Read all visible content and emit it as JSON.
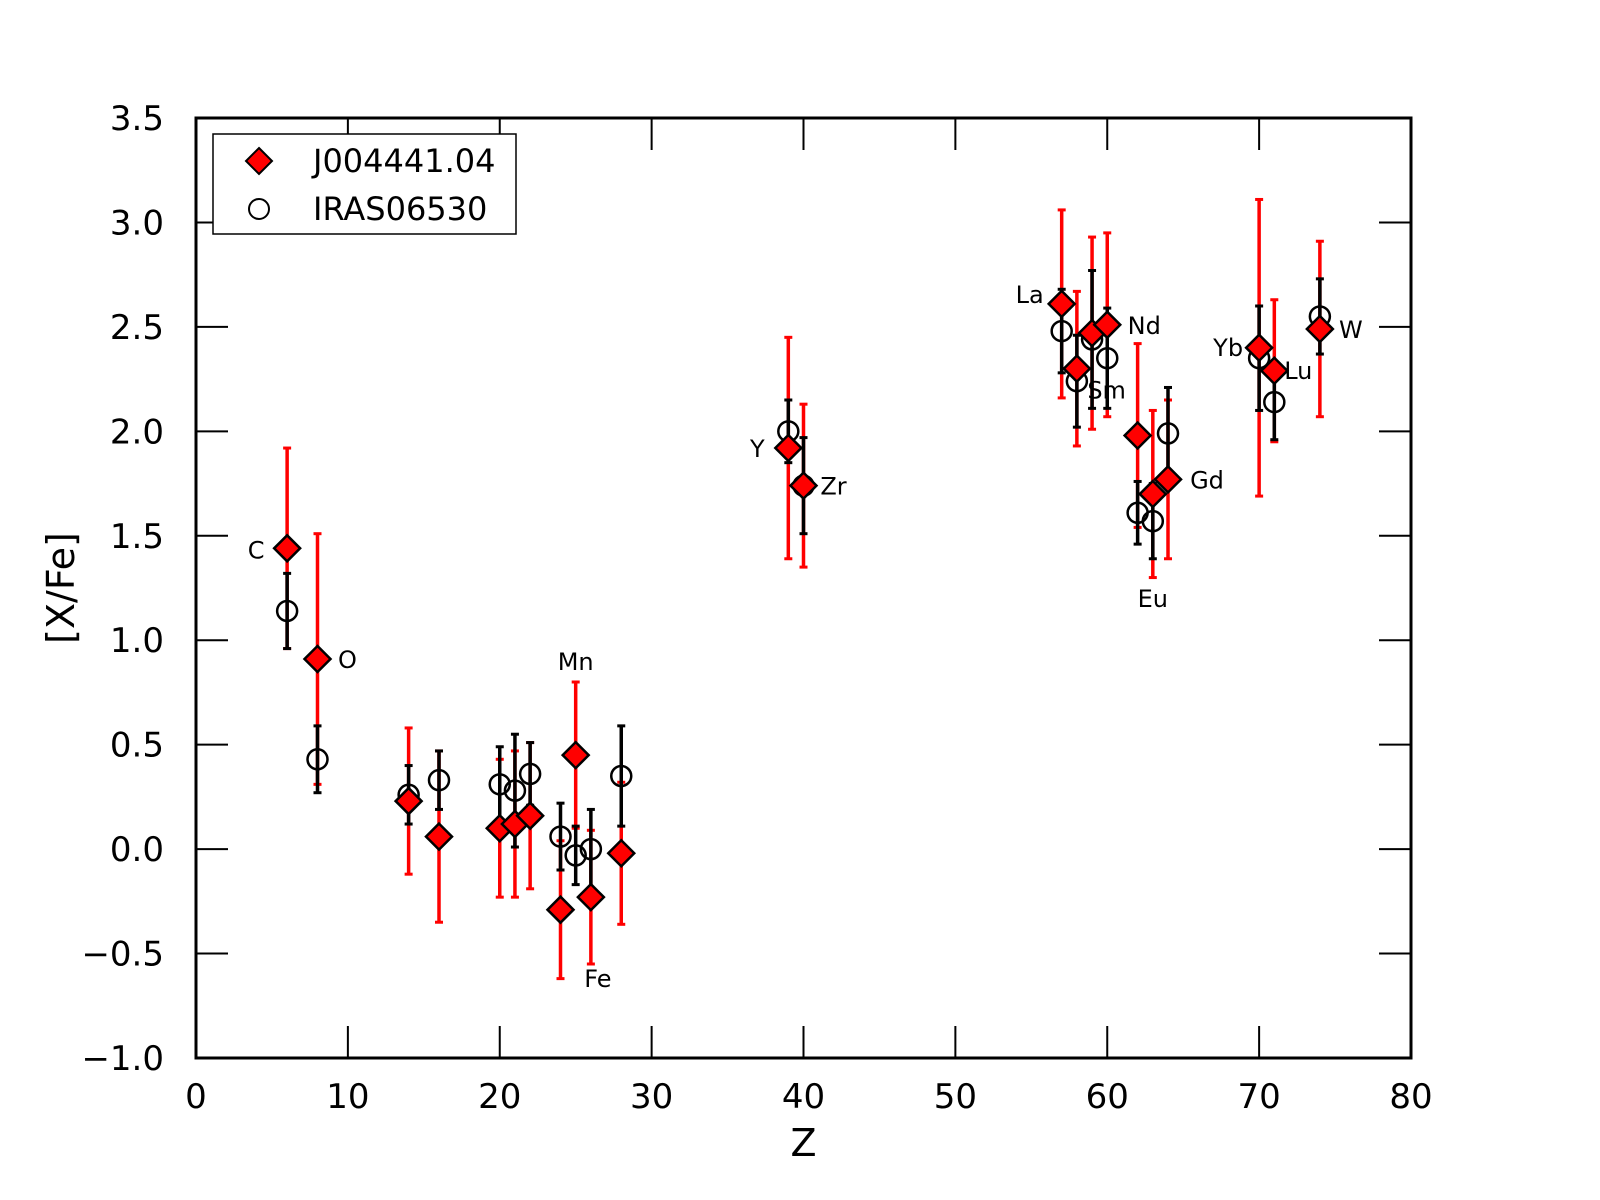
{
  "chart_data": {
    "type": "scatter",
    "xlabel": "Z",
    "ylabel": "[X/Fe]",
    "xlim": [
      0,
      80
    ],
    "ylim": [
      -1.0,
      3.5
    ],
    "xticks": [
      0,
      10,
      20,
      30,
      40,
      50,
      60,
      70,
      80
    ],
    "yticks": [
      -1.0,
      -0.5,
      0.0,
      0.5,
      1.0,
      1.5,
      2.0,
      2.5,
      3.0,
      3.5
    ],
    "xtick_labels": [
      "0",
      "10",
      "20",
      "30",
      "40",
      "50",
      "60",
      "70",
      "80"
    ],
    "ytick_labels": [
      "−1.0",
      "−0.5",
      "0.0",
      "0.5",
      "1.0",
      "1.5",
      "2.0",
      "2.5",
      "3.0",
      "3.5"
    ],
    "grid": false,
    "legend_position": "top-left",
    "series": [
      {
        "name": "J004441.04",
        "marker": "diamond",
        "color": "#ff0000",
        "error_color": "#ff0000",
        "points": [
          {
            "x": 6,
            "y": 1.44,
            "err": 0.48
          },
          {
            "x": 8,
            "y": 0.91,
            "err": 0.6
          },
          {
            "x": 14,
            "y": 0.23,
            "err": 0.35
          },
          {
            "x": 16,
            "y": 0.06,
            "err": 0.41
          },
          {
            "x": 20,
            "y": 0.1,
            "err": 0.33
          },
          {
            "x": 21,
            "y": 0.12,
            "err": 0.35
          },
          {
            "x": 22,
            "y": 0.16,
            "err": 0.35
          },
          {
            "x": 24,
            "y": -0.29,
            "err": 0.33
          },
          {
            "x": 25,
            "y": 0.45,
            "err": 0.35
          },
          {
            "x": 26,
            "y": -0.23,
            "err": 0.32
          },
          {
            "x": 28,
            "y": -0.02,
            "err": 0.34
          },
          {
            "x": 39,
            "y": 1.92,
            "err": 0.53
          },
          {
            "x": 40,
            "y": 1.74,
            "err": 0.39
          },
          {
            "x": 57,
            "y": 2.61,
            "err": 0.45
          },
          {
            "x": 58,
            "y": 2.3,
            "err": 0.37
          },
          {
            "x": 59,
            "y": 2.47,
            "err": 0.46
          },
          {
            "x": 60,
            "y": 2.51,
            "err": 0.44
          },
          {
            "x": 62,
            "y": 1.98,
            "err": 0.44
          },
          {
            "x": 63,
            "y": 1.7,
            "err": 0.4
          },
          {
            "x": 64,
            "y": 1.77,
            "err": 0.38
          },
          {
            "x": 70,
            "y": 2.4,
            "err": 0.71
          },
          {
            "x": 71,
            "y": 2.29,
            "err": 0.34
          },
          {
            "x": 74,
            "y": 2.49,
            "err": 0.42
          }
        ]
      },
      {
        "name": "IRAS06530",
        "marker": "open-circle",
        "color": "#ffffff",
        "error_color": "#000000",
        "points": [
          {
            "x": 6,
            "y": 1.14,
            "err": 0.18
          },
          {
            "x": 8,
            "y": 0.43,
            "err": 0.16
          },
          {
            "x": 14,
            "y": 0.26,
            "err": 0.14
          },
          {
            "x": 16,
            "y": 0.33,
            "err": 0.14
          },
          {
            "x": 20,
            "y": 0.31,
            "err": 0.18
          },
          {
            "x": 21,
            "y": 0.28,
            "err": 0.27
          },
          {
            "x": 22,
            "y": 0.36,
            "err": 0.15
          },
          {
            "x": 24,
            "y": 0.06,
            "err": 0.16
          },
          {
            "x": 25,
            "y": -0.03,
            "err": 0.14
          },
          {
            "x": 26,
            "y": 0.0,
            "err": 0.19
          },
          {
            "x": 28,
            "y": 0.35,
            "err": 0.24
          },
          {
            "x": 39,
            "y": 2.0,
            "err": 0.15
          },
          {
            "x": 40,
            "y": 1.74,
            "err": 0.23
          },
          {
            "x": 57,
            "y": 2.48,
            "err": 0.2
          },
          {
            "x": 58,
            "y": 2.24,
            "err": 0.22
          },
          {
            "x": 59,
            "y": 2.44,
            "err": 0.33
          },
          {
            "x": 60,
            "y": 2.35,
            "err": 0.24
          },
          {
            "x": 62,
            "y": 1.61,
            "err": 0.15
          },
          {
            "x": 63,
            "y": 1.57,
            "err": 0.18
          },
          {
            "x": 64,
            "y": 1.99,
            "err": 0.22
          },
          {
            "x": 70,
            "y": 2.35,
            "err": 0.25
          },
          {
            "x": 71,
            "y": 2.14,
            "err": 0.18
          },
          {
            "x": 74,
            "y": 2.55,
            "err": 0.18
          }
        ]
      }
    ],
    "annotations": [
      {
        "text": "C",
        "x": 6,
        "y": 1.44
      },
      {
        "text": "O",
        "x": 8,
        "y": 0.91
      },
      {
        "text": "Mn",
        "x": 25,
        "y": 0.45
      },
      {
        "text": "Fe",
        "x": 26,
        "y": -0.23
      },
      {
        "text": "Y",
        "x": 39,
        "y": 1.92
      },
      {
        "text": "Zr",
        "x": 40,
        "y": 1.74
      },
      {
        "text": "La",
        "x": 57,
        "y": 2.61
      },
      {
        "text": "Nd",
        "x": 60,
        "y": 2.51
      },
      {
        "text": "Sm",
        "x": 62,
        "y": 1.98
      },
      {
        "text": "Eu",
        "x": 63,
        "y": 1.7
      },
      {
        "text": "Gd",
        "x": 64,
        "y": 1.77
      },
      {
        "text": "Yb",
        "x": 70,
        "y": 2.4
      },
      {
        "text": "Lu",
        "x": 71,
        "y": 2.29
      },
      {
        "text": "W",
        "x": 74,
        "y": 2.49
      }
    ]
  }
}
